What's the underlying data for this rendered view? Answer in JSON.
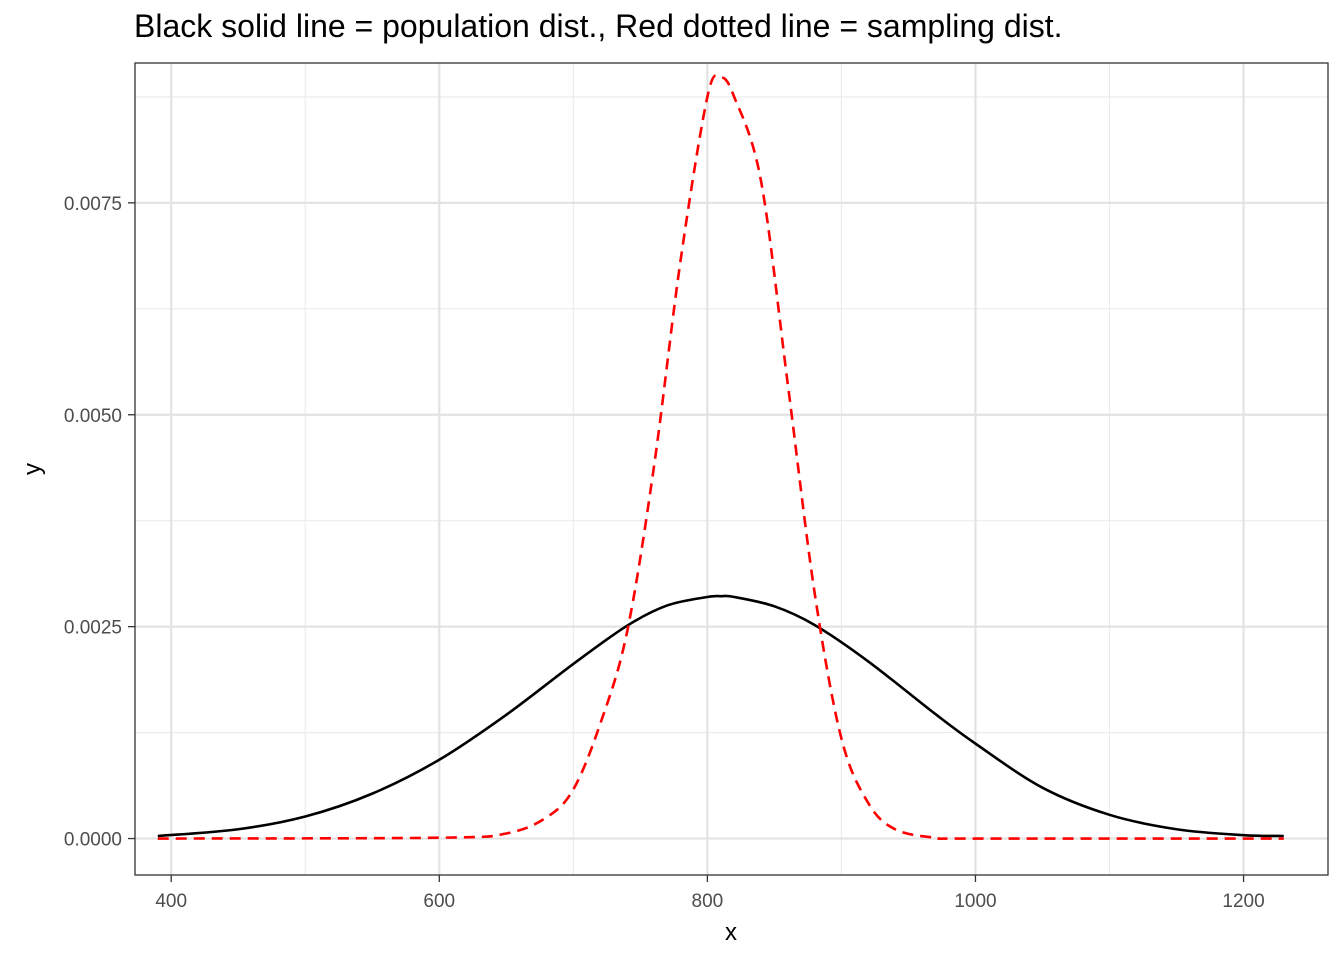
{
  "chart_data": {
    "type": "line",
    "title": "Black solid line = population dist., Red dotted line = sampling dist.",
    "xlabel": "x",
    "ylabel": "y",
    "xlim": [
      373,
      1263
    ],
    "ylim": [
      -0.00043,
      0.00915
    ],
    "x_ticks": [
      400,
      600,
      800,
      1000,
      1200
    ],
    "x_tick_labels": [
      "400",
      "600",
      "800",
      "1000",
      "1200"
    ],
    "x_minor_ticks": [
      500,
      700,
      900,
      1100
    ],
    "y_ticks": [
      0.0,
      0.0025,
      0.005,
      0.0075
    ],
    "y_tick_labels": [
      "0.0000",
      "0.0025",
      "0.0050",
      "0.0075"
    ],
    "y_minor_ticks": [
      0.00125,
      0.00375,
      0.00625,
      0.00875
    ],
    "grid": true,
    "legend": "none",
    "series": [
      {
        "color": "#000000",
        "line_style": "solid",
        "x": [
          390,
          450,
          500,
          550,
          600,
          650,
          700,
          740,
          770,
          800,
          810,
          820,
          850,
          880,
          920,
          970,
          1000,
          1050,
          1100,
          1150,
          1200,
          1230
        ],
        "y": [
          3e-05,
          0.00011,
          0.00026,
          0.00053,
          0.00093,
          0.00146,
          0.00206,
          0.00251,
          0.00275,
          0.00285,
          0.00286,
          0.00285,
          0.00274,
          0.00252,
          0.00209,
          0.00147,
          0.00112,
          0.0006,
          0.00028,
          0.00011,
          4e-05,
          3e-05
        ]
      },
      {
        "color": "#ff0000",
        "line_style": "dashed",
        "x": [
          390,
          600,
          650,
          680,
          700,
          720,
          740,
          760,
          780,
          800,
          810,
          820,
          840,
          860,
          880,
          900,
          920,
          940,
          970,
          1000,
          1230
        ],
        "y": [
          0.0,
          1e-05,
          6e-05,
          0.00025,
          0.00058,
          0.00135,
          0.00243,
          0.00437,
          0.00682,
          0.00875,
          0.00898,
          0.00875,
          0.00776,
          0.00536,
          0.0029,
          0.00118,
          0.00042,
          0.00011,
          1e-05,
          0.0,
          0.0
        ]
      }
    ]
  }
}
